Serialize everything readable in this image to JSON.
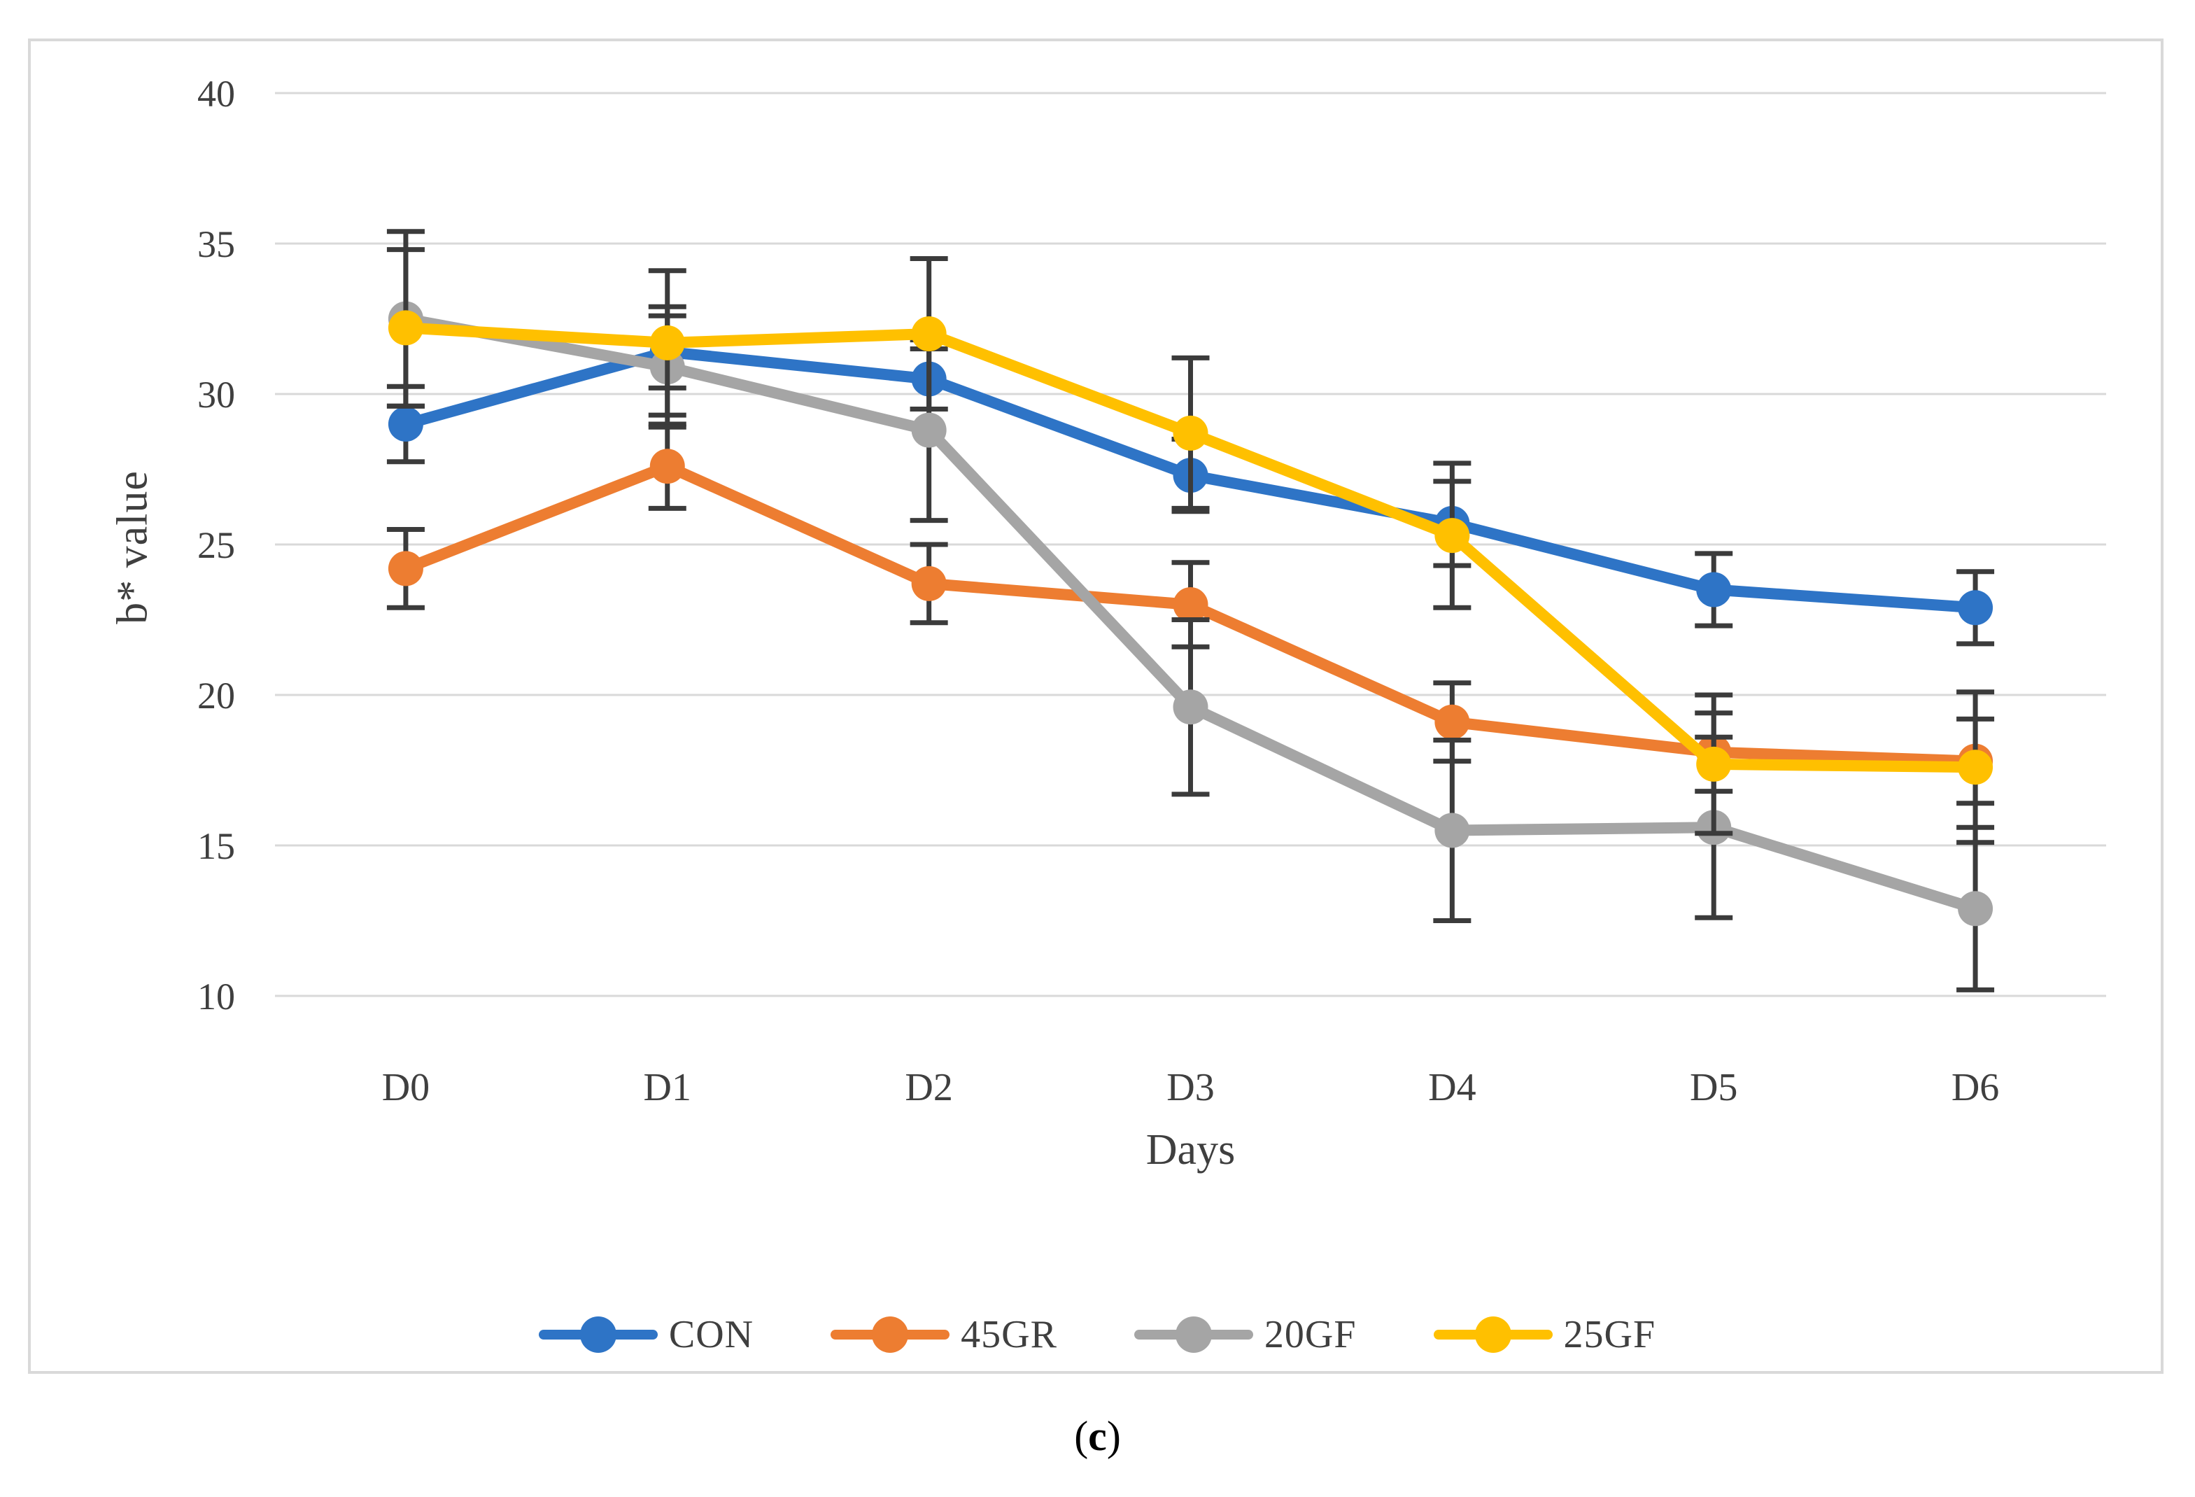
{
  "figure": {
    "caption": {
      "open": "(",
      "letter": "c",
      "close": ")"
    }
  },
  "chart_data": {
    "type": "line",
    "title": "",
    "xlabel": "Days",
    "ylabel": "b* value",
    "caption": "(c)",
    "x_categories": [
      "D0",
      "D1",
      "D2",
      "D3",
      "D4",
      "D5",
      "D6"
    ],
    "ylim": [
      10,
      40
    ],
    "yticks": [
      10,
      15,
      20,
      25,
      30,
      35,
      40
    ],
    "grid": true,
    "legend_position": "bottom",
    "error_bars": true,
    "series": [
      {
        "name": "CON",
        "color": "#2E74C6",
        "values": [
          29.0,
          31.4,
          30.5,
          27.3,
          25.7,
          23.5,
          22.9
        ],
        "errors": [
          1.25,
          1.2,
          1.0,
          1.2,
          1.4,
          1.2,
          1.2
        ]
      },
      {
        "name": "45GR",
        "color": "#ED7D31",
        "values": [
          24.2,
          27.6,
          23.7,
          23.0,
          19.1,
          18.1,
          17.8
        ],
        "errors": [
          1.3,
          1.4,
          1.3,
          1.4,
          1.3,
          1.3,
          1.4
        ]
      },
      {
        "name": "20GF",
        "color": "#A5A5A5",
        "values": [
          32.5,
          30.9,
          28.8,
          19.6,
          15.5,
          15.6,
          12.9
        ],
        "errors": [
          2.9,
          2.0,
          3.0,
          2.9,
          3.0,
          3.0,
          2.7
        ]
      },
      {
        "name": "25GF",
        "color": "#FFC000",
        "values": [
          32.2,
          31.7,
          32.0,
          28.7,
          25.3,
          17.7,
          17.6
        ],
        "errors": [
          2.6,
          2.4,
          2.5,
          2.5,
          2.4,
          2.3,
          2.5
        ]
      }
    ],
    "colors": {
      "grid": "#D9D9D9",
      "border": "#D9D9D9",
      "error_bar": "#3B3B3B",
      "text": "#3F3F3F"
    }
  }
}
